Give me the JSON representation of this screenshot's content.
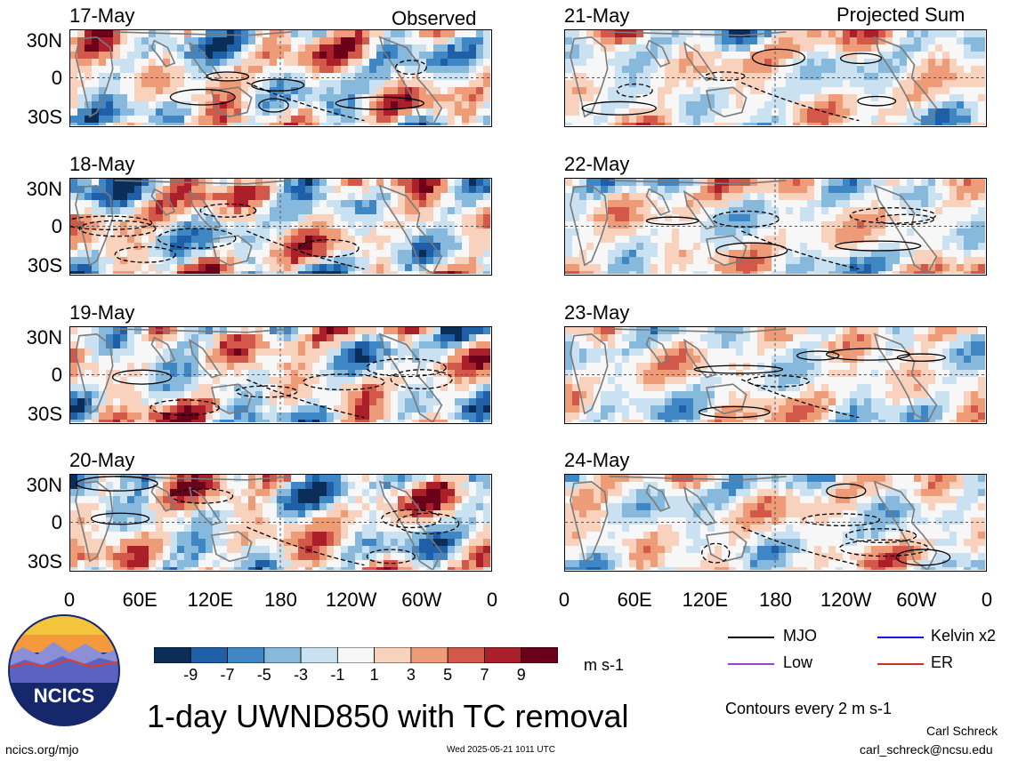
{
  "column_headers": {
    "left": "Observed",
    "right": "Projected Sum"
  },
  "panels_left": [
    {
      "date": "17-May"
    },
    {
      "date": "18-May"
    },
    {
      "date": "19-May"
    },
    {
      "date": "20-May"
    }
  ],
  "panels_right": [
    {
      "date": "21-May"
    },
    {
      "date": "22-May"
    },
    {
      "date": "23-May"
    },
    {
      "date": "24-May"
    }
  ],
  "lat_labels": [
    "30N",
    "0",
    "30S"
  ],
  "lon_labels": [
    "0",
    "60E",
    "120E",
    "180",
    "120W",
    "60W",
    "0"
  ],
  "colorbar": {
    "unit": "m s-1",
    "tick_labels": [
      "-9",
      "-7",
      "-5",
      "-3",
      "-1",
      "1",
      "3",
      "5",
      "7",
      "9"
    ],
    "colors": [
      "#0b2e59",
      "#1f5fa8",
      "#3f86c4",
      "#86b9dc",
      "#c9e1f0",
      "#f7f7f7",
      "#f9d2bd",
      "#ee9c77",
      "#d2594a",
      "#ab1f2a",
      "#6a0019"
    ]
  },
  "legend": {
    "items": [
      {
        "label": "MJO",
        "color": "#000000"
      },
      {
        "label": "Kelvin x2",
        "color": "#1010d8"
      },
      {
        "label": "Low",
        "color": "#a040d0"
      },
      {
        "label": "ER",
        "color": "#d03020"
      }
    ],
    "contour_note": "Contours every 2 m s-1"
  },
  "logo": {
    "text": "NCICS"
  },
  "main_title": "1-day UWND850 with TC removal",
  "footer": {
    "url": "ncics.org/mjo",
    "timestamp": "Wed 2025-05-21 1011 UTC",
    "author": "Carl Schreck",
    "email": "carl_schreck@ncsu.edu"
  }
}
